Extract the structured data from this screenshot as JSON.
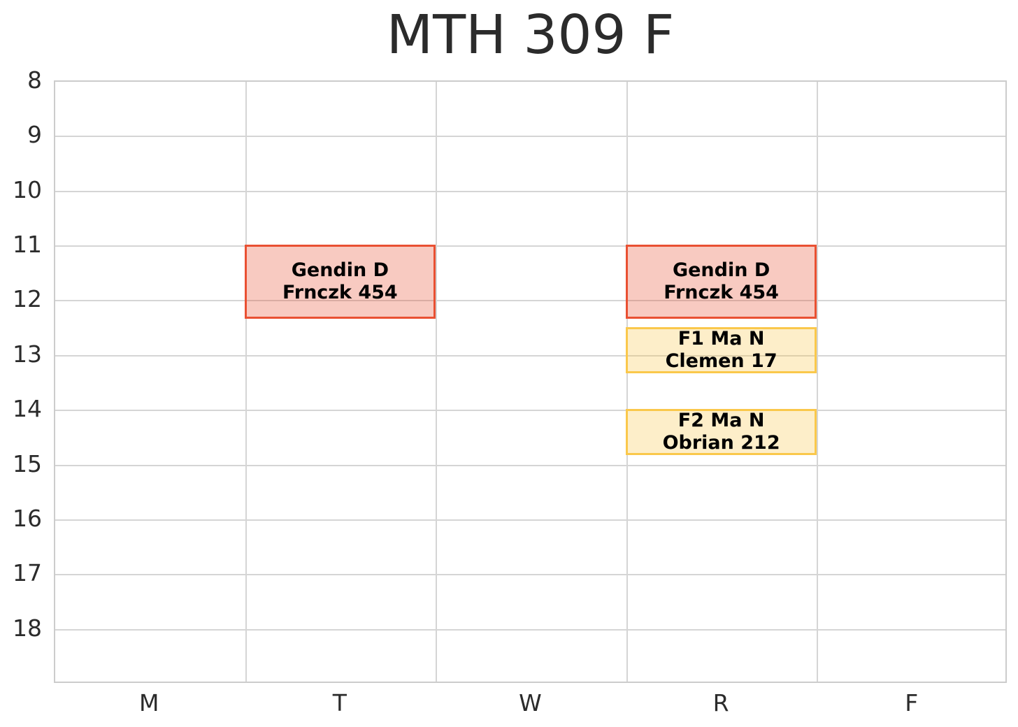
{
  "title": "MTH 309 F",
  "colors": {
    "background": "#ffffff",
    "grid": "#d5d5d5",
    "plot_border": "#cccccc",
    "axis_text": "#2b2b2b",
    "event_text": "#000000",
    "lecture_color": "#e95032",
    "recitation_color": "#fac84b"
  },
  "chart_data": {
    "type": "table",
    "subtype": "weekly-schedule",
    "title": "MTH 309 F",
    "grid": true,
    "x_axis": {
      "label": "",
      "categories": [
        "M",
        "T",
        "W",
        "R",
        "F"
      ]
    },
    "y_axis": {
      "label": "",
      "unit": "hour-of-day",
      "ticks": [
        "8",
        "9",
        "10",
        "11",
        "12",
        "13",
        "14",
        "15",
        "16",
        "17",
        "18"
      ],
      "range": [
        8,
        19
      ]
    },
    "events": [
      {
        "day": "T",
        "start_hour": 11.0,
        "end_hour": 12.333,
        "line1": "Gendin D",
        "line2": "Frnczk 454",
        "kind": "lecture",
        "color": "#e95032",
        "fill_alpha": 0.3
      },
      {
        "day": "R",
        "start_hour": 11.0,
        "end_hour": 12.333,
        "line1": "Gendin D",
        "line2": "Frnczk 454",
        "kind": "lecture",
        "color": "#e95032",
        "fill_alpha": 0.3
      },
      {
        "day": "R",
        "start_hour": 12.5,
        "end_hour": 13.333,
        "line1": "F1 Ma N",
        "line2": "Clemen 17",
        "kind": "recitation",
        "color": "#fac84b",
        "fill_alpha": 0.3
      },
      {
        "day": "R",
        "start_hour": 14.0,
        "end_hour": 14.833,
        "line1": "F2 Ma N",
        "line2": "Obrian 212",
        "kind": "recitation",
        "color": "#fac84b",
        "fill_alpha": 0.3
      }
    ]
  }
}
